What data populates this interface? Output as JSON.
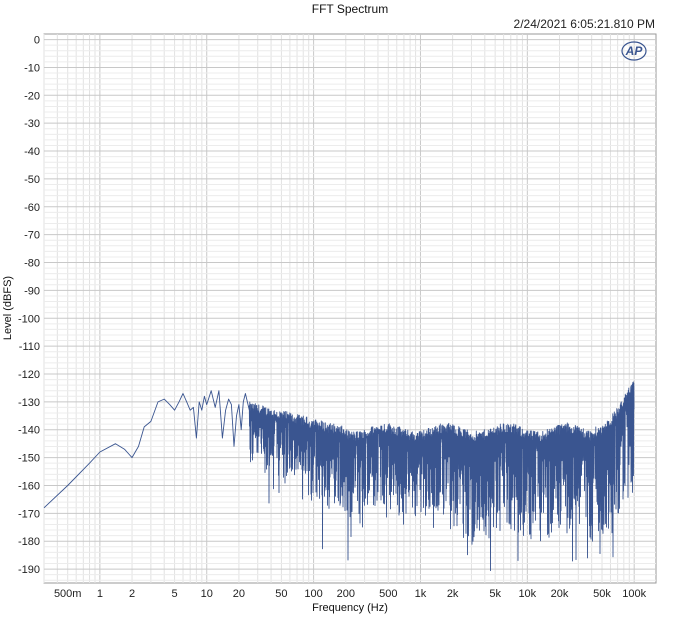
{
  "chart_data": {
    "type": "line",
    "title": "FFT Spectrum",
    "timestamp": "2/24/2021 6:05:21.810 PM",
    "logo_text": "AP",
    "xlabel": "Frequency (Hz)",
    "ylabel": "Level (dBFS)",
    "x_scale": "log",
    "xlim": [
      0.3,
      160000
    ],
    "ylim": [
      -195,
      2
    ],
    "grid": true,
    "x_ticks": [
      {
        "value": 0.5,
        "label": "500m"
      },
      {
        "value": 1,
        "label": "1"
      },
      {
        "value": 2,
        "label": "2"
      },
      {
        "value": 5,
        "label": "5"
      },
      {
        "value": 10,
        "label": "10"
      },
      {
        "value": 20,
        "label": "20"
      },
      {
        "value": 50,
        "label": "50"
      },
      {
        "value": 100,
        "label": "100"
      },
      {
        "value": 200,
        "label": "200"
      },
      {
        "value": 500,
        "label": "500"
      },
      {
        "value": 1000,
        "label": "1k"
      },
      {
        "value": 2000,
        "label": "2k"
      },
      {
        "value": 5000,
        "label": "5k"
      },
      {
        "value": 10000,
        "label": "10k"
      },
      {
        "value": 20000,
        "label": "20k"
      },
      {
        "value": 50000,
        "label": "50k"
      },
      {
        "value": 100000,
        "label": "100k"
      }
    ],
    "y_ticks": [
      {
        "value": 0,
        "label": "0"
      },
      {
        "value": -10,
        "label": "-10"
      },
      {
        "value": -20,
        "label": "-20"
      },
      {
        "value": -30,
        "label": "-30"
      },
      {
        "value": -40,
        "label": "-40"
      },
      {
        "value": -50,
        "label": "-50"
      },
      {
        "value": -60,
        "label": "-60"
      },
      {
        "value": -70,
        "label": "-70"
      },
      {
        "value": -80,
        "label": "-80"
      },
      {
        "value": -90,
        "label": "-90"
      },
      {
        "value": -100,
        "label": "-100"
      },
      {
        "value": -110,
        "label": "-110"
      },
      {
        "value": -120,
        "label": "-120"
      },
      {
        "value": -130,
        "label": "-130"
      },
      {
        "value": -140,
        "label": "-140"
      },
      {
        "value": -150,
        "label": "-150"
      },
      {
        "value": -160,
        "label": "-160"
      },
      {
        "value": -170,
        "label": "-170"
      },
      {
        "value": -180,
        "label": "-180"
      },
      {
        "value": -190,
        "label": "-190"
      }
    ],
    "series": [
      {
        "color": "#3a5590",
        "x": [
          0.3,
          0.5,
          0.8,
          1.0,
          1.4,
          1.7,
          2.0,
          2.3,
          2.6,
          3.0,
          3.5,
          4.0,
          4.5,
          5.0,
          5.5,
          6.0,
          6.5,
          7.0,
          7.5,
          8.0,
          8.5,
          9.0,
          9.5,
          10.0,
          11.0,
          12.0,
          13.0,
          14.0,
          15.0,
          16.0,
          17.0,
          18.0,
          19.0,
          20.0,
          21.0,
          22.0,
          23.0,
          25.0
        ],
        "y": [
          -168,
          -160,
          -152,
          -148,
          -145,
          -147,
          -150,
          -146,
          -139,
          -137,
          -130,
          -129,
          -131,
          -133,
          -130,
          -127,
          -130,
          -133,
          -132,
          -143,
          -130,
          -133,
          -128,
          -131,
          -126,
          -132,
          -126,
          -143,
          -133,
          -129,
          -131,
          -146,
          -135,
          -131,
          -140,
          -130,
          -127,
          -133
        ]
      }
    ],
    "noise_region": {
      "from_hz": 25,
      "to_hz": 100000,
      "upper_level_start": -132,
      "upper_level_mid": -141,
      "upper_level_end": -123,
      "lower_level": -195
    }
  }
}
